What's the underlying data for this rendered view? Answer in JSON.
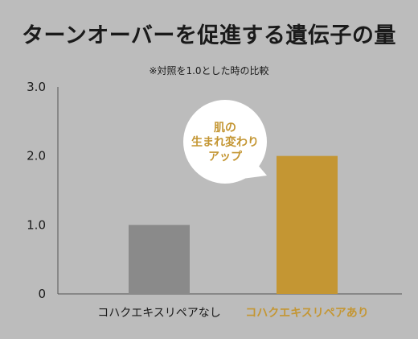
{
  "chart_data": {
    "type": "bar",
    "title": "ターンオーバーを促進する遺伝子の量",
    "subtitle": "※対照を1.0とした時の比較",
    "categories": [
      "コハクエキスリペアなし",
      "コハクエキスリペアあり"
    ],
    "values": [
      1.0,
      2.0
    ],
    "ylim": [
      0,
      3.0
    ],
    "yticks": [
      {
        "value": 0,
        "label": "0"
      },
      {
        "value": 1.0,
        "label": "1.0"
      },
      {
        "value": 2.0,
        "label": "2.0"
      },
      {
        "value": 3.0,
        "label": "3.0"
      }
    ],
    "xlabel": "",
    "ylabel": "",
    "grid": false,
    "colors": {
      "bars": [
        "#8a8a8a",
        "#c49633"
      ],
      "labels": [
        "#1a1a1a",
        "#c49633"
      ]
    },
    "annotation": {
      "lines": [
        "肌の",
        "生まれ変わり",
        "アップ"
      ],
      "color": "#c49633",
      "target_category": 1
    }
  }
}
